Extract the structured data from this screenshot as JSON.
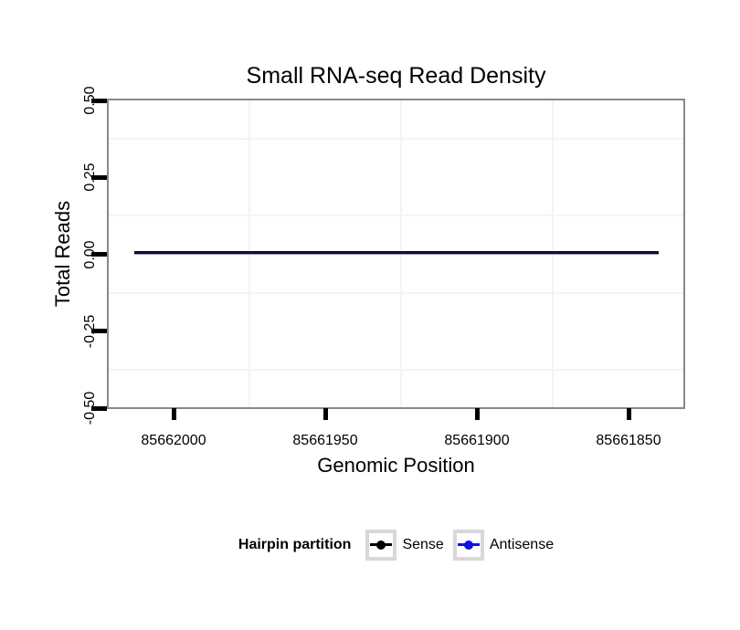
{
  "colors": {
    "background": "#ffffff",
    "panel_border": "#898989",
    "grid_minor": "#f4f4f4",
    "tick": "#000000",
    "text": "#000000",
    "sense": "#000000",
    "antisense": "#1212e0",
    "overlap_line_core": "#0d0d2e",
    "legend_key_border": "#d8d8d8"
  },
  "chart_data": {
    "type": "line",
    "title": "Small RNA-seq Read Density",
    "xlabel": "Genomic Position",
    "ylabel": "Total Reads",
    "x_ticks": [
      85662000,
      85661950,
      85661900,
      85661850
    ],
    "x_axis_reversed": true,
    "x_range_displayed": [
      85662022,
      85661831
    ],
    "y_ticks": [
      0.5,
      0.25,
      0,
      -0.25,
      -0.5
    ],
    "y_tick_labels": [
      "0.50",
      "0.25",
      "0.00",
      "-0.25",
      "-0.50"
    ],
    "ylim": [
      -0.5,
      0.5
    ],
    "grid": "minor gridlines only, very light gray, between tick positions",
    "legend": {
      "title": "Hairpin partition",
      "position": "bottom",
      "entries": [
        {
          "label": "Sense",
          "color": "#000000"
        },
        {
          "label": "Antisense",
          "color": "#1212e0"
        }
      ]
    },
    "series": [
      {
        "name": "Sense",
        "color": "#000000",
        "x": [
          85662013,
          85661840
        ],
        "y": [
          0,
          0
        ],
        "note": "constant zero reads across region"
      },
      {
        "name": "Antisense",
        "color": "#1212e0",
        "x": [
          85662013,
          85661840
        ],
        "y": [
          0,
          0
        ],
        "note": "constant zero reads, overlaps Sense line at y=0"
      }
    ]
  }
}
